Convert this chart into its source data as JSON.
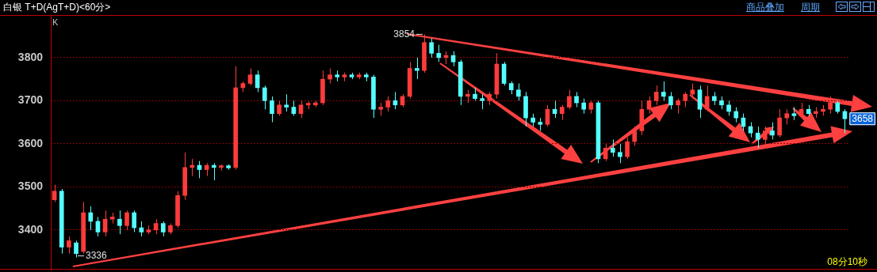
{
  "chart_data": {
    "type": "candlestick",
    "title": "白银 T+D(AgT+D)<60分>",
    "categories": [
      null,
      null,
      null,
      null,
      null,
      null,
      null,
      null,
      null,
      null,
      null,
      null,
      null,
      null,
      null,
      null,
      null,
      null,
      null,
      null,
      null,
      null,
      null,
      null,
      null,
      null,
      null,
      null,
      null,
      null,
      null,
      null,
      null,
      null,
      null,
      null,
      null,
      null,
      null,
      null,
      null,
      null,
      null,
      null,
      null,
      null,
      null,
      null,
      null,
      null,
      null,
      null,
      null,
      null,
      null,
      null,
      null,
      null,
      null,
      null,
      null,
      null,
      null,
      null,
      null,
      null,
      null,
      null,
      null,
      null,
      null,
      null,
      null,
      null,
      null,
      null,
      null,
      null,
      null,
      null,
      null,
      null,
      null,
      null,
      null,
      null,
      null,
      null,
      null,
      null,
      null,
      null,
      null,
      null,
      null,
      null,
      null,
      null,
      null,
      null,
      null,
      null,
      null,
      null,
      null,
      null,
      null,
      null,
      null,
      null
    ],
    "ohlc": [
      [
        3470,
        3505,
        3465,
        3490
      ],
      [
        3490,
        3495,
        3345,
        3360
      ],
      [
        3360,
        3385,
        3345,
        3375
      ],
      [
        3370,
        3375,
        3336,
        3345
      ],
      [
        3350,
        3465,
        3345,
        3440
      ],
      [
        3440,
        3455,
        3400,
        3420
      ],
      [
        3420,
        3430,
        3385,
        3395
      ],
      [
        3395,
        3445,
        3385,
        3425
      ],
      [
        3425,
        3440,
        3415,
        3430
      ],
      [
        3425,
        3445,
        3390,
        3410
      ],
      [
        3410,
        3445,
        3400,
        3440
      ],
      [
        3440,
        3445,
        3395,
        3405
      ],
      [
        3405,
        3420,
        3385,
        3395
      ],
      [
        3395,
        3410,
        3390,
        3400
      ],
      [
        3400,
        3425,
        3390,
        3415
      ],
      [
        3415,
        3420,
        3385,
        3395
      ],
      [
        3395,
        3415,
        3390,
        3410
      ],
      [
        3410,
        3490,
        3405,
        3480
      ],
      [
        3480,
        3580,
        3470,
        3545
      ],
      [
        3545,
        3565,
        3525,
        3550
      ],
      [
        3550,
        3560,
        3520,
        3540
      ],
      [
        3540,
        3555,
        3525,
        3550
      ],
      [
        3550,
        3555,
        3515,
        3545
      ],
      [
        3545,
        3552,
        3538,
        3549
      ],
      [
        3549,
        3552,
        3540,
        3544
      ],
      [
        3545,
        3780,
        3540,
        3730
      ],
      [
        3730,
        3745,
        3720,
        3740
      ],
      [
        3740,
        3775,
        3735,
        3760
      ],
      [
        3760,
        3770,
        3720,
        3730
      ],
      [
        3730,
        3735,
        3680,
        3700
      ],
      [
        3700,
        3710,
        3650,
        3670
      ],
      [
        3670,
        3700,
        3665,
        3690
      ],
      [
        3690,
        3715,
        3675,
        3685
      ],
      [
        3685,
        3700,
        3665,
        3670
      ],
      [
        3670,
        3700,
        3660,
        3690
      ],
      [
        3690,
        3698,
        3680,
        3694
      ],
      [
        3690,
        3700,
        3685,
        3695
      ],
      [
        3695,
        3770,
        3690,
        3750
      ],
      [
        3750,
        3775,
        3740,
        3760
      ],
      [
        3760,
        3770,
        3745,
        3755
      ],
      [
        3755,
        3765,
        3745,
        3760
      ],
      [
        3760,
        3765,
        3750,
        3755
      ],
      [
        3755,
        3765,
        3750,
        3760
      ],
      [
        3760,
        3765,
        3745,
        3755
      ],
      [
        3755,
        3760,
        3660,
        3680
      ],
      [
        3680,
        3695,
        3665,
        3685
      ],
      [
        3685,
        3710,
        3675,
        3700
      ],
      [
        3700,
        3720,
        3680,
        3690
      ],
      [
        3690,
        3715,
        3685,
        3710
      ],
      [
        3710,
        3790,
        3705,
        3775
      ],
      [
        3775,
        3800,
        3750,
        3770
      ],
      [
        3770,
        3854,
        3765,
        3835
      ],
      [
        3835,
        3845,
        3800,
        3810
      ],
      [
        3810,
        3830,
        3790,
        3800
      ],
      [
        3800,
        3815,
        3785,
        3805
      ],
      [
        3805,
        3815,
        3780,
        3790
      ],
      [
        3790,
        3795,
        3690,
        3710
      ],
      [
        3710,
        3725,
        3695,
        3715
      ],
      [
        3715,
        3730,
        3700,
        3705
      ],
      [
        3705,
        3715,
        3680,
        3700
      ],
      [
        3700,
        3720,
        3690,
        3715
      ],
      [
        3715,
        3810,
        3705,
        3785
      ],
      [
        3785,
        3790,
        3735,
        3740
      ],
      [
        3740,
        3745,
        3715,
        3725
      ],
      [
        3725,
        3740,
        3700,
        3710
      ],
      [
        3710,
        3720,
        3640,
        3660
      ],
      [
        3660,
        3670,
        3640,
        3650
      ],
      [
        3650,
        3660,
        3630,
        3645
      ],
      [
        3645,
        3690,
        3640,
        3680
      ],
      [
        3680,
        3700,
        3660,
        3670
      ],
      [
        3670,
        3690,
        3655,
        3685
      ],
      [
        3685,
        3725,
        3680,
        3710
      ],
      [
        3710,
        3720,
        3685,
        3695
      ],
      [
        3695,
        3705,
        3670,
        3680
      ],
      [
        3680,
        3700,
        3670,
        3695
      ],
      [
        3695,
        3700,
        3555,
        3565
      ],
      [
        3565,
        3600,
        3560,
        3590
      ],
      [
        3590,
        3610,
        3570,
        3580
      ],
      [
        3580,
        3600,
        3555,
        3570
      ],
      [
        3570,
        3615,
        3565,
        3605
      ],
      [
        3605,
        3640,
        3595,
        3630
      ],
      [
        3630,
        3700,
        3620,
        3680
      ],
      [
        3680,
        3710,
        3670,
        3700
      ],
      [
        3700,
        3735,
        3690,
        3720
      ],
      [
        3720,
        3745,
        3700,
        3710
      ],
      [
        3710,
        3720,
        3680,
        3690
      ],
      [
        3690,
        3705,
        3670,
        3700
      ],
      [
        3700,
        3720,
        3685,
        3715
      ],
      [
        3715,
        3740,
        3705,
        3725
      ],
      [
        3725,
        3735,
        3660,
        3680
      ],
      [
        3680,
        3735,
        3675,
        3710
      ],
      [
        3710,
        3720,
        3690,
        3700
      ],
      [
        3700,
        3710,
        3680,
        3690
      ],
      [
        3690,
        3700,
        3665,
        3675
      ],
      [
        3675,
        3685,
        3650,
        3660
      ],
      [
        3660,
        3670,
        3630,
        3640
      ],
      [
        3640,
        3650,
        3615,
        3625
      ],
      [
        3625,
        3640,
        3590,
        3610
      ],
      [
        3610,
        3640,
        3600,
        3630
      ],
      [
        3630,
        3650,
        3610,
        3620
      ],
      [
        3620,
        3680,
        3615,
        3660
      ],
      [
        3660,
        3680,
        3645,
        3670
      ],
      [
        3670,
        3685,
        3655,
        3665
      ],
      [
        3665,
        3695,
        3660,
        3680
      ],
      [
        3680,
        3690,
        3665,
        3670
      ],
      [
        3670,
        3685,
        3660,
        3675
      ],
      [
        3675,
        3690,
        3665,
        3680
      ],
      [
        3680,
        3710,
        3670,
        3695
      ],
      [
        3695,
        3700,
        3670,
        3675
      ],
      [
        3675,
        3680,
        3625,
        3658
      ]
    ],
    "ylim": [
      3306,
      3897
    ],
    "yticks": [
      3400,
      3500,
      3600,
      3700,
      3800
    ],
    "grid": "y",
    "annotations": [
      "K",
      "商品叠加",
      "周期",
      "08分10秒",
      "3854",
      "3336",
      {
        "text": "3658",
        "y": 3658
      }
    ]
  }
}
